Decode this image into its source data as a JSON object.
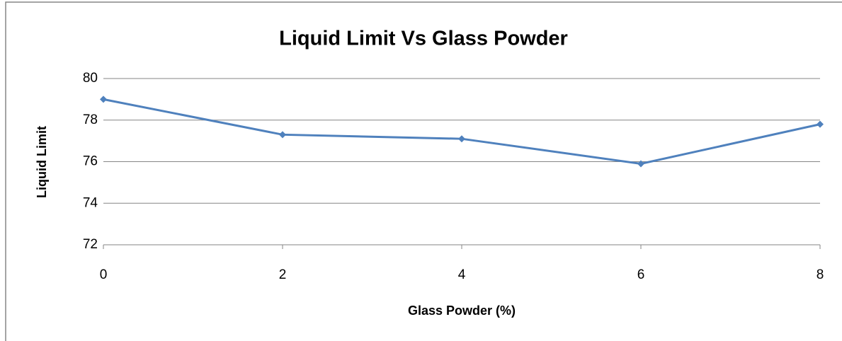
{
  "chart_data": {
    "type": "line",
    "title": "Liquid Limit Vs Glass Powder",
    "x_label": "Glass Powder (%)",
    "y_label": "Liquid Limit",
    "x": [
      0,
      2,
      4,
      6,
      8
    ],
    "series": [
      {
        "name": "Liquid Limit",
        "color": "#4f81bd",
        "values": [
          79,
          77.3,
          77.1,
          75.9,
          77.8
        ]
      }
    ],
    "xlim": [
      0,
      8
    ],
    "xticks": [
      0,
      2,
      4,
      6,
      8
    ],
    "ylim": [
      72,
      80
    ],
    "yticks": [
      72,
      74,
      76,
      78,
      80
    ],
    "grid": true
  }
}
